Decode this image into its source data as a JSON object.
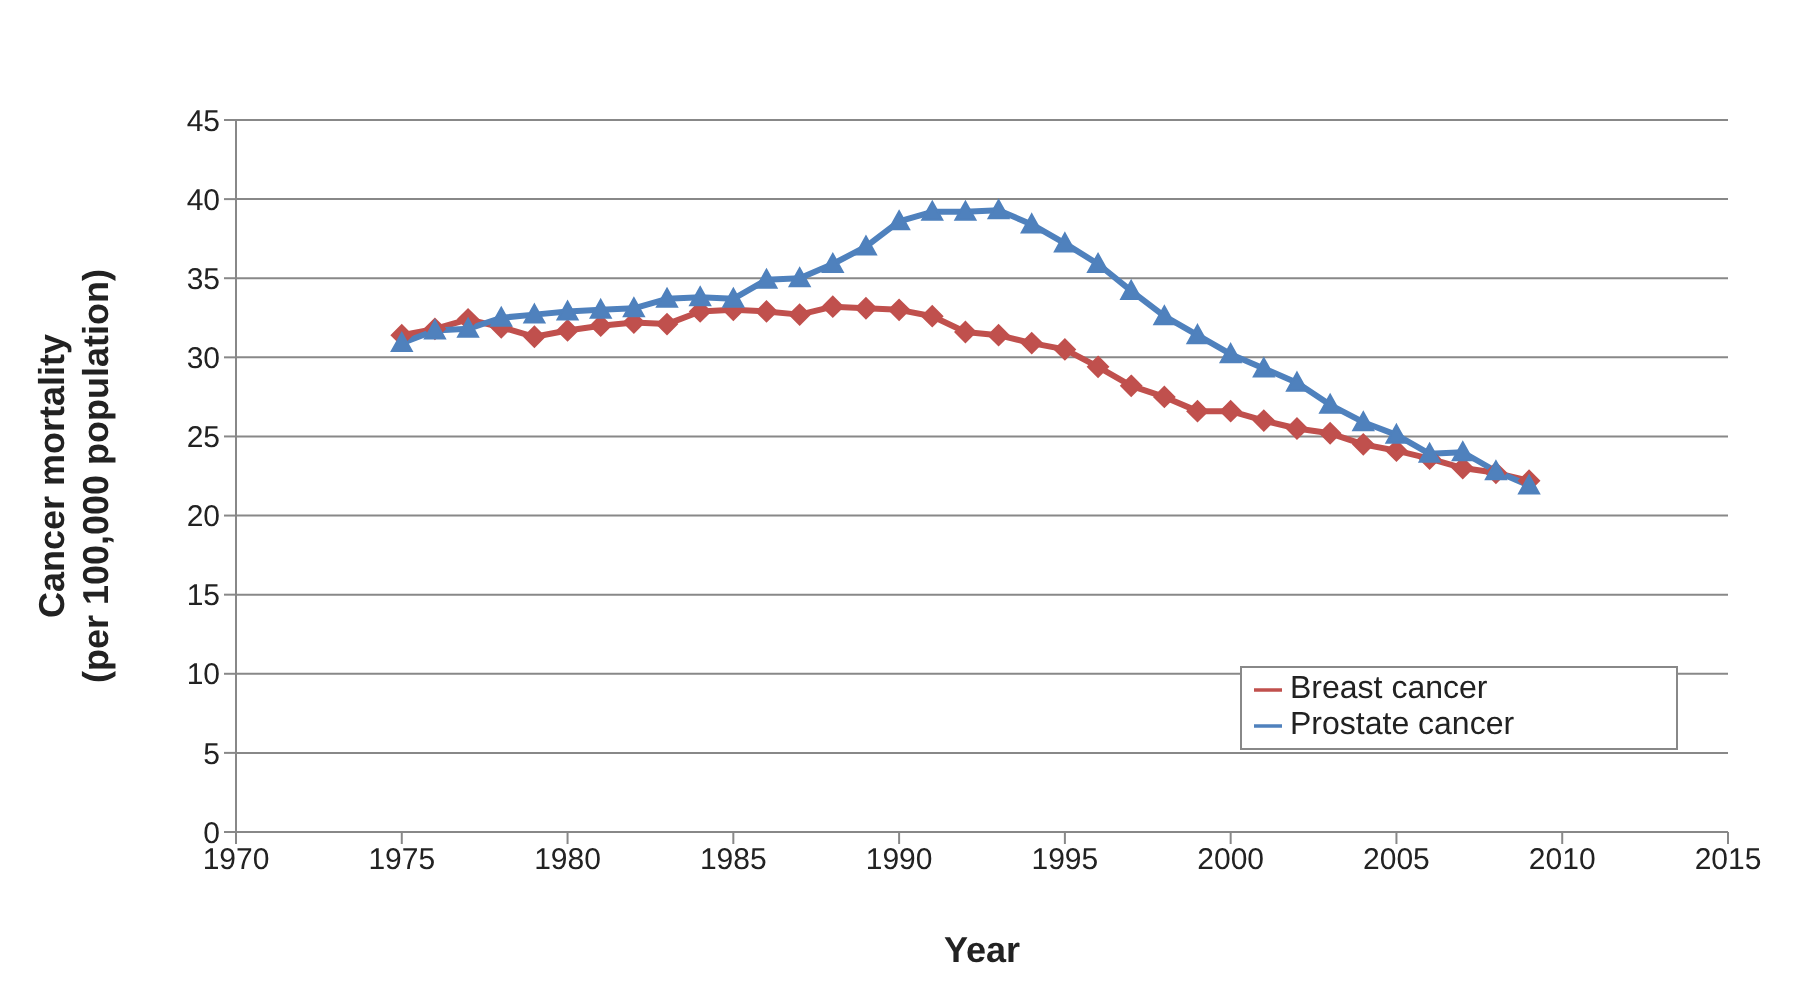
{
  "chart_data": {
    "type": "line",
    "xlabel": "Year",
    "ylabel": "Cancer mortality\n(per 100,000 population)",
    "x": [
      1975,
      1976,
      1977,
      1978,
      1979,
      1980,
      1981,
      1982,
      1983,
      1984,
      1985,
      1986,
      1987,
      1988,
      1989,
      1990,
      1991,
      1992,
      1993,
      1994,
      1995,
      1996,
      1997,
      1998,
      1999,
      2000,
      2001,
      2002,
      2003,
      2004,
      2005,
      2006,
      2007,
      2008,
      2009
    ],
    "series": [
      {
        "name": "Breast cancer",
        "color": "#c0504d",
        "marker": "diamond",
        "values": [
          31.4,
          31.8,
          32.4,
          31.9,
          31.3,
          31.7,
          32.0,
          32.2,
          32.1,
          32.9,
          33.0,
          32.9,
          32.7,
          33.2,
          33.1,
          33.0,
          32.6,
          31.6,
          31.4,
          30.9,
          30.5,
          29.4,
          28.2,
          27.5,
          26.6,
          26.6,
          26.0,
          25.5,
          25.2,
          24.5,
          24.1,
          23.6,
          23.0,
          22.7,
          22.2
        ]
      },
      {
        "name": "Prostate cancer",
        "color": "#4f81bd",
        "marker": "triangle",
        "values": [
          30.9,
          31.7,
          31.8,
          32.5,
          32.7,
          32.9,
          33.0,
          33.1,
          33.7,
          33.8,
          33.7,
          34.9,
          35.0,
          35.9,
          37.0,
          38.6,
          39.2,
          39.2,
          39.3,
          38.4,
          37.2,
          35.9,
          34.2,
          32.6,
          31.4,
          30.2,
          29.3,
          28.4,
          27.0,
          25.9,
          25.1,
          23.9,
          24.0,
          22.8,
          21.9
        ]
      }
    ],
    "xlim": [
      1970,
      2015
    ],
    "xticks": [
      1970,
      1975,
      1980,
      1985,
      1990,
      1995,
      2000,
      2005,
      2010,
      2015
    ],
    "ylim": [
      0,
      45
    ],
    "yticks": [
      0,
      5,
      10,
      15,
      20,
      25,
      30,
      35,
      40,
      45
    ],
    "grid": "y",
    "legend": "bottom right"
  }
}
